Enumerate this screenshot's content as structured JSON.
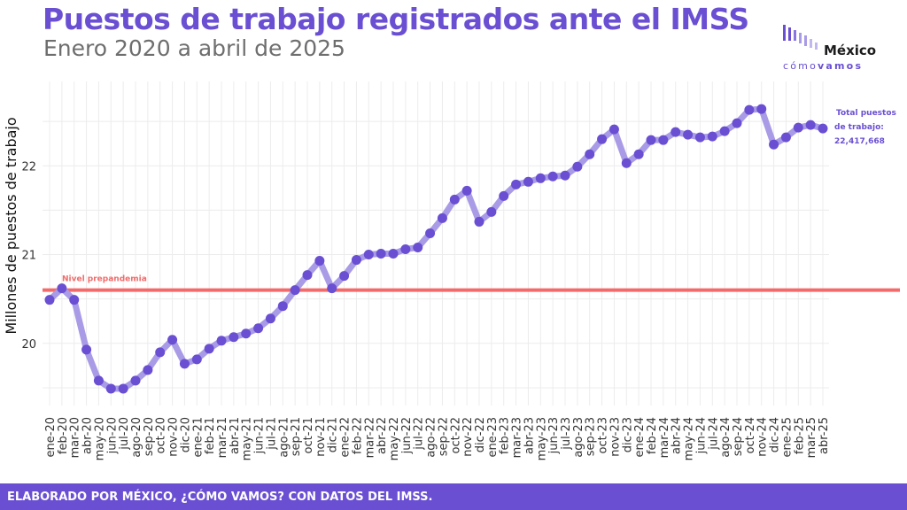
{
  "chart_data": {
    "type": "line",
    "title": "Puestos de trabajo registrados ante el IMSS",
    "subtitle": "Enero 2020 a abril de 2025",
    "ylabel": "Millones de puestos de trabajo",
    "xlabel": "",
    "ylim": [
      19.3,
      22.95
    ],
    "yticks": [
      20,
      21,
      22
    ],
    "grid": true,
    "x": [
      "ene-20",
      "feb-20",
      "mar-20",
      "abr-20",
      "may-20",
      "jun-20",
      "jul-20",
      "ago-20",
      "sep-20",
      "oct-20",
      "nov-20",
      "dic-20",
      "ene-21",
      "feb-21",
      "mar-21",
      "abr-21",
      "may-21",
      "jun-21",
      "jul-21",
      "ago-21",
      "sep-21",
      "oct-21",
      "nov-21",
      "dic-21",
      "ene-22",
      "feb-22",
      "mar-22",
      "abr-22",
      "may-22",
      "jun-22",
      "jul-22",
      "ago-22",
      "sep-22",
      "oct-22",
      "nov-22",
      "dic-22",
      "ene-23",
      "feb-23",
      "mar-23",
      "abr-23",
      "may-23",
      "jun-23",
      "jul-23",
      "ago-23",
      "sep-23",
      "oct-23",
      "nov-23",
      "dic-23",
      "ene-24",
      "feb-24",
      "mar-24",
      "abr-24",
      "may-24",
      "jun-24",
      "jul-24",
      "ago-24",
      "sep-24",
      "oct-24",
      "nov-24",
      "dic-24",
      "ene-25",
      "feb-25",
      "mar-25",
      "abr-25"
    ],
    "series": [
      {
        "values": [
          20.49,
          20.62,
          20.49,
          19.93,
          19.58,
          19.49,
          19.49,
          19.58,
          19.7,
          19.9,
          20.04,
          19.77,
          19.82,
          19.94,
          20.03,
          20.07,
          20.11,
          20.17,
          20.28,
          20.42,
          20.6,
          20.77,
          20.93,
          20.62,
          20.76,
          20.94,
          21.0,
          21.01,
          21.01,
          21.06,
          21.08,
          21.24,
          21.41,
          21.62,
          21.72,
          21.37,
          21.48,
          21.66,
          21.79,
          21.82,
          21.86,
          21.88,
          21.89,
          21.99,
          22.13,
          22.3,
          22.41,
          22.03,
          22.13,
          22.29,
          22.29,
          22.38,
          22.35,
          22.32,
          22.33,
          22.39,
          22.48,
          22.63,
          22.64,
          22.24,
          22.32,
          22.43,
          22.46,
          22.42
        ],
        "color": "#6a4fd3",
        "line_color": "#a99be6"
      }
    ],
    "reference_line": {
      "value": 20.6,
      "label": "Nivel prepandemia",
      "color": "#f26a6a"
    },
    "end_annotation": {
      "lines": [
        "Total puestos",
        "de trabajo:",
        "22,417,668"
      ],
      "color": "#6a4fd3"
    }
  },
  "logo": {
    "name": "México",
    "sub_light": "cómo",
    "sub_bold": "vamos",
    "color": "#6a4fd3"
  },
  "footer": {
    "text": "ELABORADO POR MÉXICO, ¿CÓMO VAMOS? CON DATOS DEL IMSS.",
    "color": "#6a4fd3"
  }
}
